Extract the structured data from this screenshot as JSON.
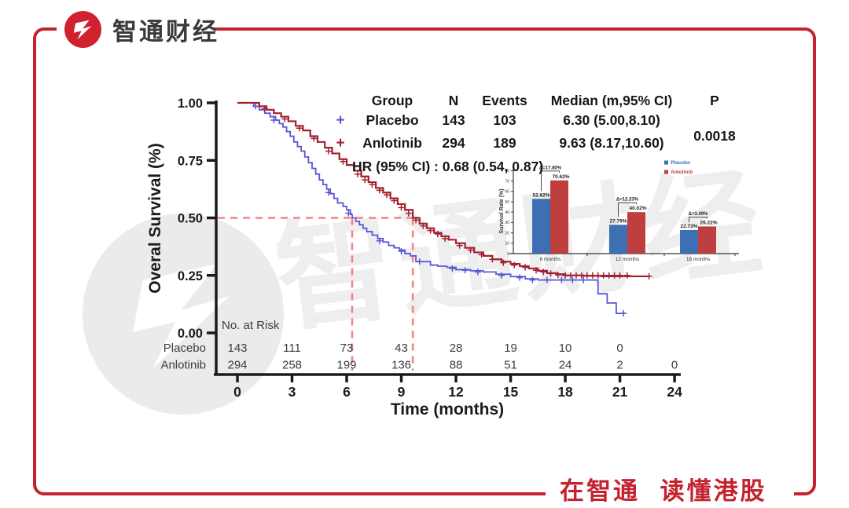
{
  "header": {
    "brand": "智通财经"
  },
  "footer": {
    "slogan": "在智通 读懂港股"
  },
  "watermark": {
    "text": "智通财经"
  },
  "colors": {
    "frame_red": "#C5222F",
    "logo_red": "#D0212E",
    "placebo_blue": "#5757D8",
    "anlotinib_red": "#A32031",
    "bar_blue": "#3D6FB2",
    "bar_red": "#BF3F3F",
    "dashed_ref": "#F58383"
  },
  "chart_data": [
    {
      "type": "line",
      "subtype": "kaplan-meier-survival",
      "xlabel": "Time (months)",
      "ylabel": "Overal Survival (%)",
      "xlim": [
        0,
        24
      ],
      "xticks": [
        0,
        3,
        6,
        9,
        12,
        15,
        18,
        21,
        24
      ],
      "ylim": [
        0,
        1
      ],
      "yticks": [
        [
          "1.00",
          1
        ],
        [
          "0.75",
          0.75
        ],
        [
          "0.50",
          0.5
        ],
        [
          "0.25",
          0.25
        ],
        [
          "0.00",
          0
        ]
      ],
      "legend_table": {
        "headers": [
          "Group",
          "N",
          "Events",
          "Median (m,95% CI)",
          "P"
        ],
        "rows": [
          {
            "group": "Placebo",
            "n": "143",
            "events": "103",
            "median": "6.30 (5.00,8.10)"
          },
          {
            "group": "Anlotinib",
            "n": "294",
            "events": "189",
            "median": "9.63 (8.17,10.60)"
          }
        ],
        "p_value": "0.0018",
        "hr_text": "HR (95% CI) : 0.68 (0.54, 0.87)"
      },
      "median_lines": {
        "level": 0.5,
        "placebo_median": 6.3,
        "anlotinib_median": 9.63
      },
      "series": [
        {
          "name": "Placebo",
          "color": "#5757D8",
          "marker": "+",
          "points": [
            [
              0,
              1.0
            ],
            [
              0.7,
              1.0
            ],
            [
              0.9,
              0.985
            ],
            [
              1.2,
              0.97
            ],
            [
              1.5,
              0.955
            ],
            [
              1.8,
              0.94
            ],
            [
              2.1,
              0.925
            ],
            [
              2.3,
              0.91
            ],
            [
              2.5,
              0.895
            ],
            [
              2.7,
              0.875
            ],
            [
              2.9,
              0.855
            ],
            [
              3.1,
              0.83
            ],
            [
              3.3,
              0.81
            ],
            [
              3.5,
              0.79
            ],
            [
              3.7,
              0.765
            ],
            [
              3.9,
              0.74
            ],
            [
              4.1,
              0.715
            ],
            [
              4.3,
              0.69
            ],
            [
              4.5,
              0.665
            ],
            [
              4.7,
              0.645
            ],
            [
              4.9,
              0.625
            ],
            [
              5.1,
              0.605
            ],
            [
              5.3,
              0.585
            ],
            [
              5.5,
              0.565
            ],
            [
              5.8,
              0.55
            ],
            [
              6.0,
              0.535
            ],
            [
              6.2,
              0.515
            ],
            [
              6.3,
              0.5
            ],
            [
              6.5,
              0.485
            ],
            [
              6.7,
              0.47
            ],
            [
              6.9,
              0.455
            ],
            [
              7.1,
              0.44
            ],
            [
              7.4,
              0.425
            ],
            [
              7.7,
              0.41
            ],
            [
              8.0,
              0.395
            ],
            [
              8.3,
              0.38
            ],
            [
              8.6,
              0.37
            ],
            [
              8.9,
              0.36
            ],
            [
              9.2,
              0.345
            ],
            [
              9.5,
              0.335
            ],
            [
              9.8,
              0.31
            ],
            [
              10.6,
              0.295
            ],
            [
              11.0,
              0.29
            ],
            [
              11.5,
              0.285
            ],
            [
              12.0,
              0.275
            ],
            [
              12.8,
              0.27
            ],
            [
              13.5,
              0.265
            ],
            [
              14.2,
              0.255
            ],
            [
              15.0,
              0.245
            ],
            [
              15.8,
              0.235
            ],
            [
              16.5,
              0.23
            ],
            [
              19.3,
              0.23
            ],
            [
              19.8,
              0.17
            ],
            [
              20.3,
              0.13
            ],
            [
              20.8,
              0.085
            ],
            [
              21.3,
              0.085
            ]
          ],
          "censors": [
            [
              1.0,
              0.985
            ],
            [
              2.0,
              0.925
            ],
            [
              5.0,
              0.61
            ],
            [
              6.1,
              0.52
            ],
            [
              7.8,
              0.4
            ],
            [
              9.0,
              0.355
            ],
            [
              10.0,
              0.31
            ],
            [
              11.8,
              0.28
            ],
            [
              12.5,
              0.272
            ],
            [
              13.2,
              0.265
            ],
            [
              14.5,
              0.25
            ],
            [
              15.5,
              0.24
            ],
            [
              16.2,
              0.23
            ],
            [
              17.0,
              0.23
            ],
            [
              17.8,
              0.23
            ],
            [
              18.4,
              0.23
            ],
            [
              19.0,
              0.23
            ],
            [
              21.2,
              0.085
            ]
          ]
        },
        {
          "name": "Anlotinib",
          "color": "#A32031",
          "marker": "+",
          "points": [
            [
              0,
              1.0
            ],
            [
              0.8,
              1.0
            ],
            [
              1.2,
              0.985
            ],
            [
              1.6,
              0.97
            ],
            [
              2.0,
              0.955
            ],
            [
              2.4,
              0.94
            ],
            [
              2.8,
              0.92
            ],
            [
              3.2,
              0.9
            ],
            [
              3.6,
              0.88
            ],
            [
              4.0,
              0.855
            ],
            [
              4.4,
              0.83
            ],
            [
              4.8,
              0.805
            ],
            [
              5.2,
              0.78
            ],
            [
              5.6,
              0.755
            ],
            [
              6.0,
              0.73
            ],
            [
              6.4,
              0.705
            ],
            [
              6.8,
              0.68
            ],
            [
              7.2,
              0.655
            ],
            [
              7.6,
              0.63
            ],
            [
              8.0,
              0.61
            ],
            [
              8.4,
              0.585
            ],
            [
              8.8,
              0.56
            ],
            [
              9.2,
              0.535
            ],
            [
              9.63,
              0.5
            ],
            [
              10.0,
              0.475
            ],
            [
              10.4,
              0.455
            ],
            [
              10.8,
              0.435
            ],
            [
              11.2,
              0.42
            ],
            [
              11.6,
              0.405
            ],
            [
              12.0,
              0.39
            ],
            [
              12.5,
              0.37
            ],
            [
              13.0,
              0.35
            ],
            [
              13.5,
              0.335
            ],
            [
              14.0,
              0.32
            ],
            [
              14.5,
              0.31
            ],
            [
              15.0,
              0.3
            ],
            [
              15.5,
              0.29
            ],
            [
              16.0,
              0.28
            ],
            [
              16.5,
              0.27
            ],
            [
              17.0,
              0.26
            ],
            [
              17.5,
              0.255
            ],
            [
              18.0,
              0.25
            ],
            [
              19.0,
              0.248
            ],
            [
              20.0,
              0.246
            ],
            [
              22.6,
              0.246
            ]
          ],
          "censors": [
            [
              1.5,
              0.975
            ],
            [
              2.6,
              0.93
            ],
            [
              3.4,
              0.89
            ],
            [
              4.2,
              0.845
            ],
            [
              5.0,
              0.79
            ],
            [
              5.8,
              0.745
            ],
            [
              6.6,
              0.69
            ],
            [
              7.0,
              0.665
            ],
            [
              7.4,
              0.645
            ],
            [
              7.8,
              0.62
            ],
            [
              8.2,
              0.6
            ],
            [
              8.6,
              0.575
            ],
            [
              9.0,
              0.545
            ],
            [
              9.4,
              0.52
            ],
            [
              9.8,
              0.49
            ],
            [
              10.2,
              0.465
            ],
            [
              10.6,
              0.445
            ],
            [
              11.0,
              0.43
            ],
            [
              11.4,
              0.41
            ],
            [
              12.2,
              0.38
            ],
            [
              12.8,
              0.36
            ],
            [
              13.4,
              0.34
            ],
            [
              14.0,
              0.32
            ],
            [
              14.6,
              0.305
            ],
            [
              15.2,
              0.295
            ],
            [
              15.8,
              0.285
            ],
            [
              16.4,
              0.272
            ],
            [
              16.8,
              0.265
            ],
            [
              17.2,
              0.258
            ],
            [
              17.6,
              0.252
            ],
            [
              18.0,
              0.25
            ],
            [
              18.3,
              0.25
            ],
            [
              18.6,
              0.25
            ],
            [
              18.9,
              0.25
            ],
            [
              19.2,
              0.25
            ],
            [
              19.5,
              0.25
            ],
            [
              19.8,
              0.25
            ],
            [
              20.1,
              0.25
            ],
            [
              20.4,
              0.25
            ],
            [
              20.7,
              0.25
            ],
            [
              21.0,
              0.25
            ],
            [
              21.4,
              0.25
            ],
            [
              22.6,
              0.246
            ]
          ]
        }
      ],
      "risk_table": {
        "title": "No. at Risk",
        "times": [
          0,
          3,
          6,
          9,
          12,
          15,
          18,
          21,
          24
        ],
        "rows": [
          {
            "label": "Placebo",
            "values": [
              143,
              111,
              73,
              43,
              28,
              19,
              10,
              0
            ]
          },
          {
            "label": "Anlotinib",
            "values": [
              294,
              258,
              199,
              136,
              88,
              51,
              24,
              2,
              0
            ]
          }
        ]
      }
    },
    {
      "type": "bar",
      "ylabel": "Survival Rate (%)",
      "ylim": [
        0,
        80
      ],
      "ytick_step": 10,
      "categories": [
        "6 months",
        "12 months",
        "18 months"
      ],
      "series": [
        {
          "name": "Placebo",
          "color": "#3D6FB2",
          "values": [
            52.82,
            27.79,
            22.73
          ],
          "labels": [
            "52.82%",
            "27.79%",
            "22.73%"
          ]
        },
        {
          "name": "Anlotinib",
          "color": "#BF3F3F",
          "values": [
            70.62,
            40.02,
            26.22
          ],
          "labels": [
            "70.62%",
            "40.02%",
            "26.22%"
          ]
        }
      ],
      "deltas": [
        "Δ=17.80%",
        "Δ=12.23%",
        "Δ=3.49%"
      ],
      "legend": [
        "Placebo",
        "Anlotinib"
      ],
      "legend_position": "top-right"
    }
  ]
}
